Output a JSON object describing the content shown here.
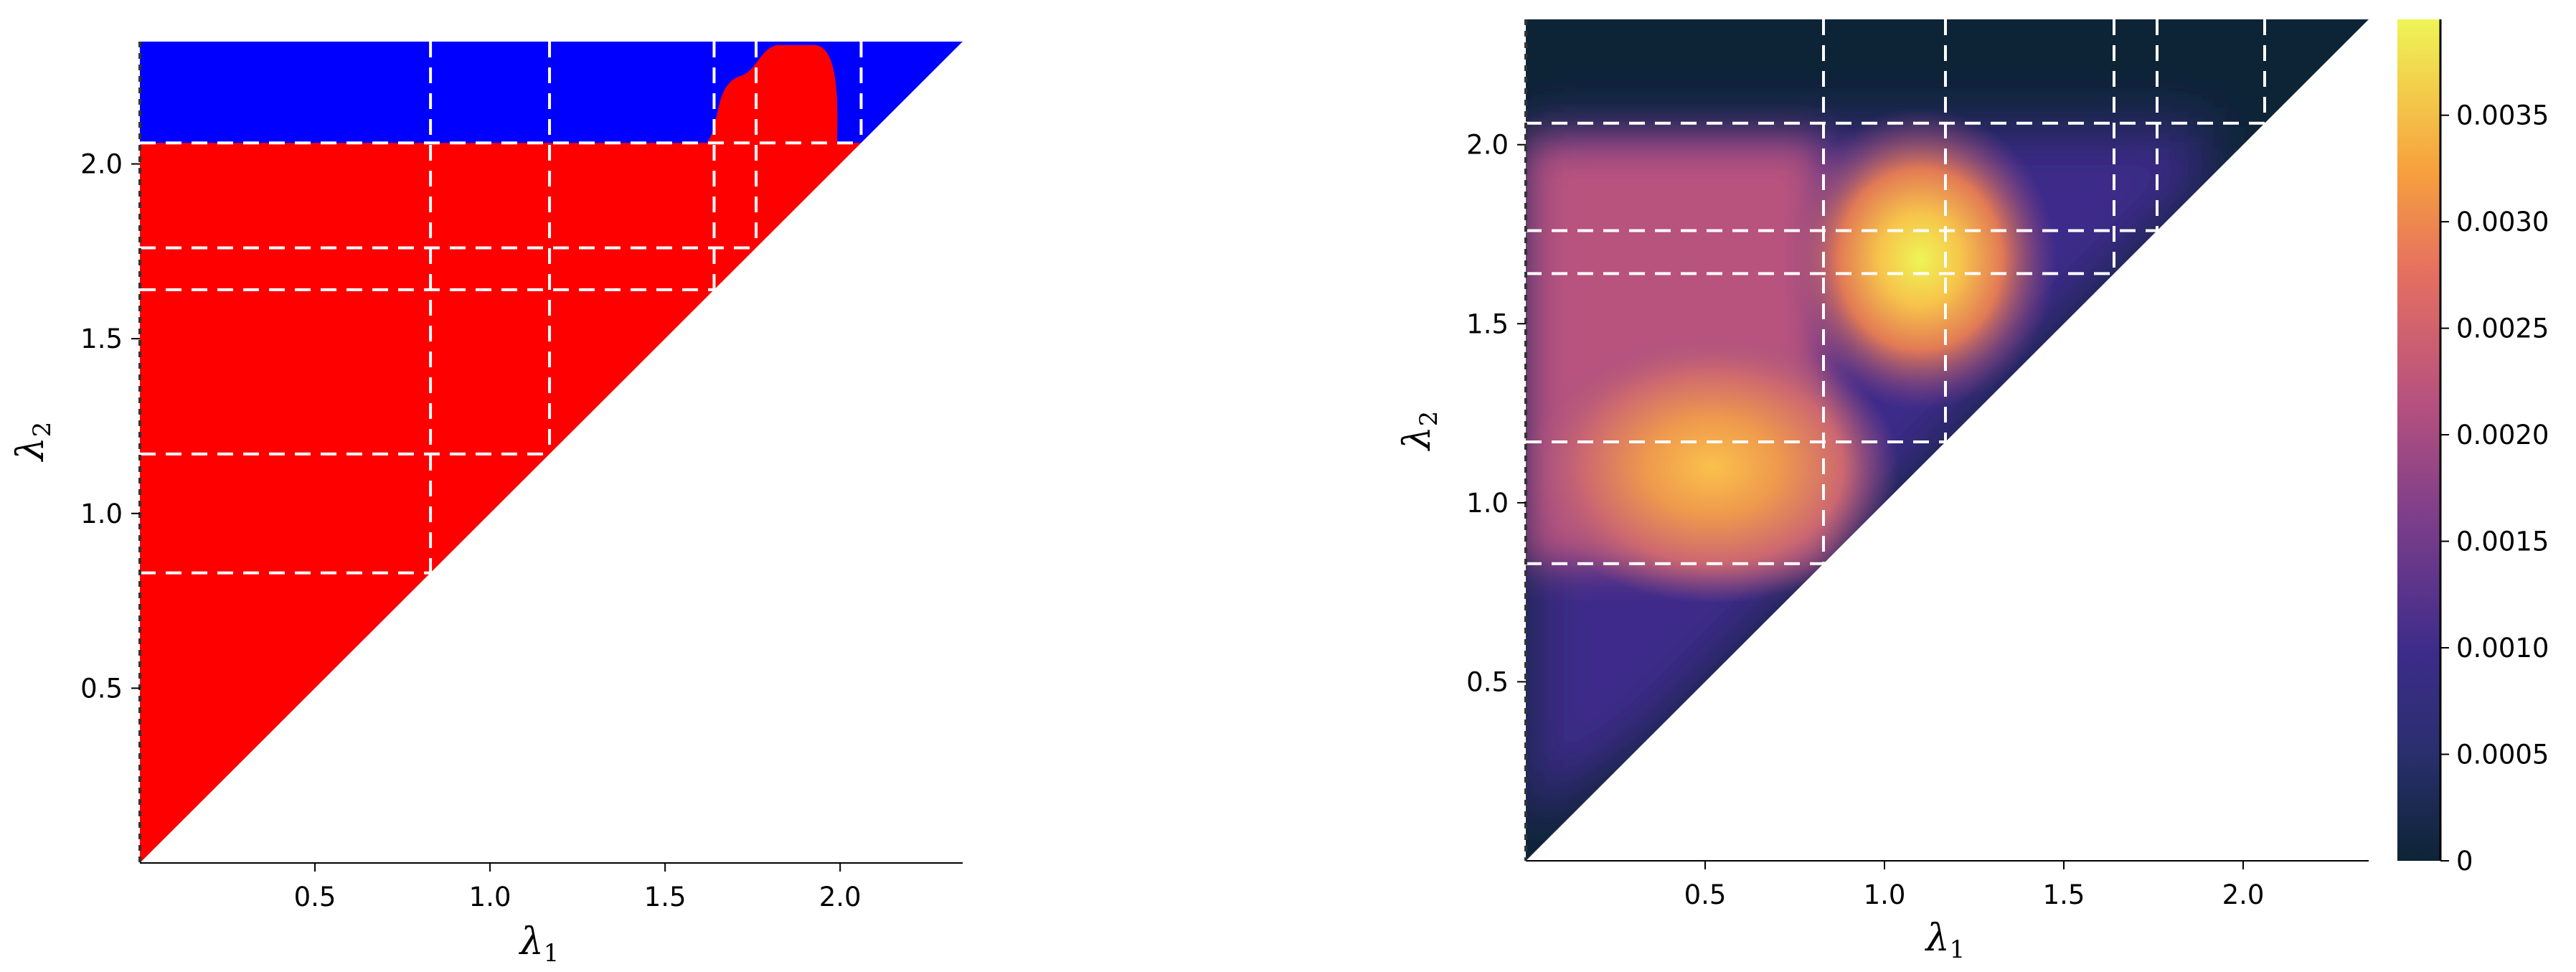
{
  "chart_data": [
    {
      "type": "heatmap",
      "title": "",
      "xlabel": "λ1",
      "ylabel": "λ2",
      "xlim": [
        0,
        2.35
      ],
      "ylim": [
        0,
        2.35
      ],
      "xticks": [
        0.5,
        1.0,
        1.5,
        2.0
      ],
      "xtick_labels": [
        "0.5",
        "1.0",
        "1.5",
        "2.0"
      ],
      "yticks": [
        0.5,
        1.0,
        1.5,
        2.0
      ],
      "ytick_labels": [
        "0.5",
        "1.0",
        "1.5",
        "2.0"
      ],
      "domain": "upper triangle (λ2 ≥ λ1)",
      "regions": [
        {
          "color": "#ff0000",
          "description": "λ2 below 2.06, plus a lobe between λ1 1.63 and 2.0 up to the top"
        },
        {
          "color": "#0000ff",
          "description": "λ2 above 2.06"
        }
      ],
      "grid_lines_vertical": [
        0.83,
        1.17,
        1.64,
        1.76,
        2.06
      ],
      "grid_lines_horizontal": [
        0.83,
        1.17,
        1.64,
        1.76,
        2.06
      ],
      "grid_style": "white dashed",
      "legend": "none"
    },
    {
      "type": "heatmap",
      "title": "",
      "xlabel": "λ1",
      "ylabel": "λ2",
      "xlim": [
        0,
        2.35
      ],
      "ylim": [
        0,
        2.35
      ],
      "xticks": [
        0.5,
        1.0,
        1.5,
        2.0
      ],
      "xtick_labels": [
        "0.5",
        "1.0",
        "1.5",
        "2.0"
      ],
      "yticks": [
        0.5,
        1.0,
        1.5,
        2.0
      ],
      "ytick_labels": [
        "0.5",
        "1.0",
        "1.5",
        "2.0"
      ],
      "domain": "upper triangle (λ2 ≥ λ1)",
      "colormap": "plasma-like (dark navy → purple → orange → yellow)",
      "colorbar": {
        "range": [
          0,
          0.00395
        ],
        "ticks": [
          0,
          0.0005,
          0.001,
          0.0015,
          0.002,
          0.0025,
          0.003,
          0.0035
        ],
        "tick_labels": [
          "0",
          "0.0005",
          "0.0010",
          "0.0015",
          "0.0020",
          "0.0025",
          "0.0030",
          "0.0035"
        ],
        "colors": [
          "#0d2436",
          "#3d2c8a",
          "#b8527e",
          "#f28f42",
          "#eef556"
        ]
      },
      "peaks": [
        {
          "lambda1": 1.1,
          "lambda2": 1.68,
          "value": 0.0039
        },
        {
          "lambda1": 0.52,
          "lambda2": 1.1,
          "value": 0.0033
        }
      ],
      "background_band": {
        "lambda1_from": 0.0,
        "lambda1_to": 0.83,
        "lambda2_from": 0.83,
        "lambda2_to": 2.06,
        "value": 0.0022
      },
      "grid_lines_vertical": [
        0.83,
        1.17,
        1.64,
        1.76,
        2.06
      ],
      "grid_lines_horizontal": [
        0.83,
        1.17,
        1.64,
        1.76,
        2.06
      ],
      "grid_style": "white dashed",
      "legend": "colorbar right"
    }
  ]
}
